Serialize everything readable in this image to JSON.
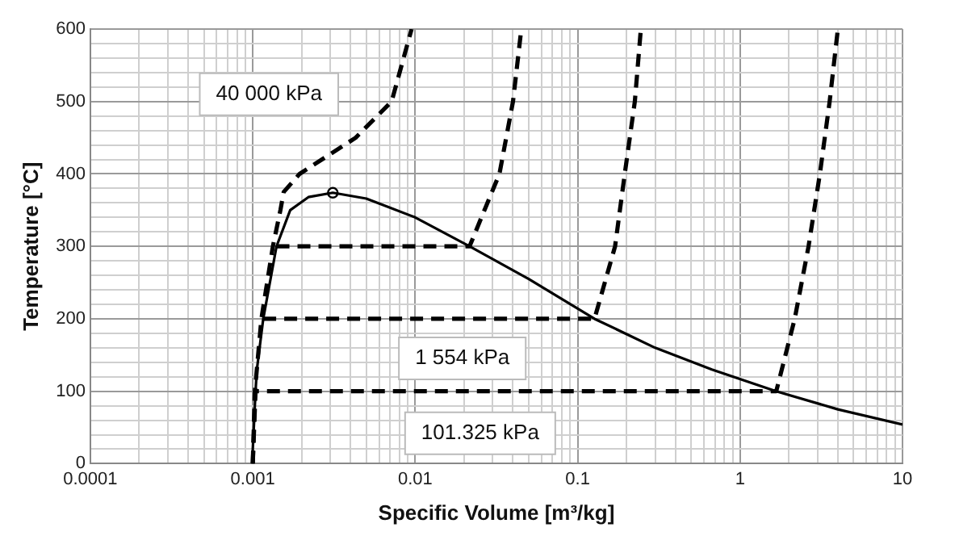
{
  "chart_data": {
    "type": "line",
    "xlabel": "Specific Volume [m³/kg]",
    "ylabel": "Temperature [°C]",
    "log": "x",
    "grid": true,
    "legend": false,
    "xlim": [
      0.0001,
      10
    ],
    "ylim": [
      0,
      600
    ],
    "xticks": [
      0.0001,
      {
        "value": 0.0002,
        "label": null
      },
      {
        "value": 0.0003,
        "label": null
      },
      {
        "value": 0.0004,
        "label": null
      },
      {
        "value": 0.0005,
        "label": null
      },
      {
        "value": 0.0006,
        "label": null
      },
      {
        "value": 0.0007,
        "label": null
      },
      {
        "value": 0.0008,
        "label": null
      },
      {
        "value": 0.0009,
        "label": null
      },
      0.001,
      {
        "value": 0.002,
        "label": null
      },
      {
        "value": 0.003,
        "label": null
      },
      {
        "value": 0.004,
        "label": null
      },
      {
        "value": 0.005,
        "label": null
      },
      {
        "value": 0.006,
        "label": null
      },
      {
        "value": 0.007,
        "label": null
      },
      {
        "value": 0.008,
        "label": null
      },
      {
        "value": 0.009,
        "label": null
      },
      0.01,
      {
        "value": 0.02,
        "label": null
      },
      {
        "value": 0.03,
        "label": null
      },
      {
        "value": 0.04,
        "label": null
      },
      {
        "value": 0.05,
        "label": null
      },
      {
        "value": 0.06,
        "label": null
      },
      {
        "value": 0.07,
        "label": null
      },
      {
        "value": 0.08,
        "label": null
      },
      {
        "value": 0.09,
        "label": null
      },
      0.1,
      {
        "value": 0.2,
        "label": null
      },
      {
        "value": 0.3,
        "label": null
      },
      {
        "value": 0.4,
        "label": null
      },
      {
        "value": 0.5,
        "label": null
      },
      {
        "value": 0.6,
        "label": null
      },
      {
        "value": 0.7,
        "label": null
      },
      {
        "value": 0.8,
        "label": null
      },
      {
        "value": 0.9,
        "label": null
      },
      1,
      {
        "value": 2,
        "label": null
      },
      {
        "value": 3,
        "label": null
      },
      {
        "value": 4,
        "label": null
      },
      {
        "value": 5,
        "label": null
      },
      {
        "value": 6,
        "label": null
      },
      {
        "value": 7,
        "label": null
      },
      {
        "value": 8,
        "label": null
      },
      {
        "value": 9,
        "label": null
      },
      10
    ],
    "yticks": [
      0,
      {
        "value": 20,
        "label": null
      },
      {
        "value": 40,
        "label": null
      },
      {
        "value": 60,
        "label": null
      },
      {
        "value": 80,
        "label": null
      },
      100,
      {
        "value": 120,
        "label": null
      },
      {
        "value": 140,
        "label": null
      },
      {
        "value": 160,
        "label": null
      },
      {
        "value": 180,
        "label": null
      },
      200,
      {
        "value": 220,
        "label": null
      },
      {
        "value": 240,
        "label": null
      },
      {
        "value": 260,
        "label": null
      },
      {
        "value": 280,
        "label": null
      },
      300,
      {
        "value": 320,
        "label": null
      },
      {
        "value": 340,
        "label": null
      },
      {
        "value": 360,
        "label": null
      },
      {
        "value": 380,
        "label": null
      },
      400,
      {
        "value": 420,
        "label": null
      },
      {
        "value": 440,
        "label": null
      },
      {
        "value": 460,
        "label": null
      },
      {
        "value": 480,
        "label": null
      },
      500,
      {
        "value": 520,
        "label": null
      },
      {
        "value": 540,
        "label": null
      },
      {
        "value": 560,
        "label": null
      },
      {
        "value": 580,
        "label": null
      },
      600
    ],
    "series": [
      {
        "color": "#000000",
        "line_style": "solid",
        "marker": "none",
        "x": [
          0.001,
          0.001,
          0.00102,
          0.00104,
          0.00106,
          0.00116,
          0.0014,
          0.0017,
          0.0022,
          0.00311,
          0.005,
          0.01,
          0.0216,
          0.05,
          0.127,
          0.3,
          0.67,
          1.67,
          4,
          10
        ],
        "values": [
          0,
          20,
          60,
          100,
          130,
          200,
          300,
          350,
          368,
          374,
          366,
          340,
          300,
          255,
          200,
          160,
          130,
          100,
          75,
          54
        ]
      },
      {
        "type": "scatter",
        "color": "#000000",
        "marker": "circle",
        "x": [
          0.00311
        ],
        "values": [
          374
        ]
      },
      {
        "color": "#000000",
        "line_style": "dashed",
        "marker": "none",
        "x": [
          0.001,
          0.00104,
          1.67,
          2.17,
          2.64,
          3.1,
          3.56,
          4.0
        ],
        "values": [
          0,
          100,
          100,
          200,
          300,
          400,
          500,
          600
        ]
      },
      {
        "color": "#000000",
        "line_style": "dashed",
        "marker": "none",
        "x": [
          0.00116,
          0.127,
          0.17,
          0.195,
          0.225,
          0.245
        ],
        "values": [
          200,
          200,
          300,
          400,
          500,
          600
        ]
      },
      {
        "color": "#000000",
        "line_style": "dashed",
        "marker": "none",
        "x": [
          0.0014,
          0.0216,
          0.033,
          0.04,
          0.045
        ],
        "values": [
          300,
          300,
          400,
          500,
          600
        ]
      },
      {
        "color": "#000000",
        "line_style": "dashed",
        "marker": "none",
        "x": [
          0.001,
          0.00103,
          0.00113,
          0.00133,
          0.00148,
          0.00155,
          0.00194,
          0.0043,
          0.00716,
          0.0095
        ],
        "values": [
          0,
          100,
          200,
          300,
          350,
          375,
          400,
          450,
          500,
          600
        ]
      }
    ],
    "annotations": [
      "40 000 kPa",
      "1 554 kPa",
      "101.325 kPa"
    ]
  }
}
